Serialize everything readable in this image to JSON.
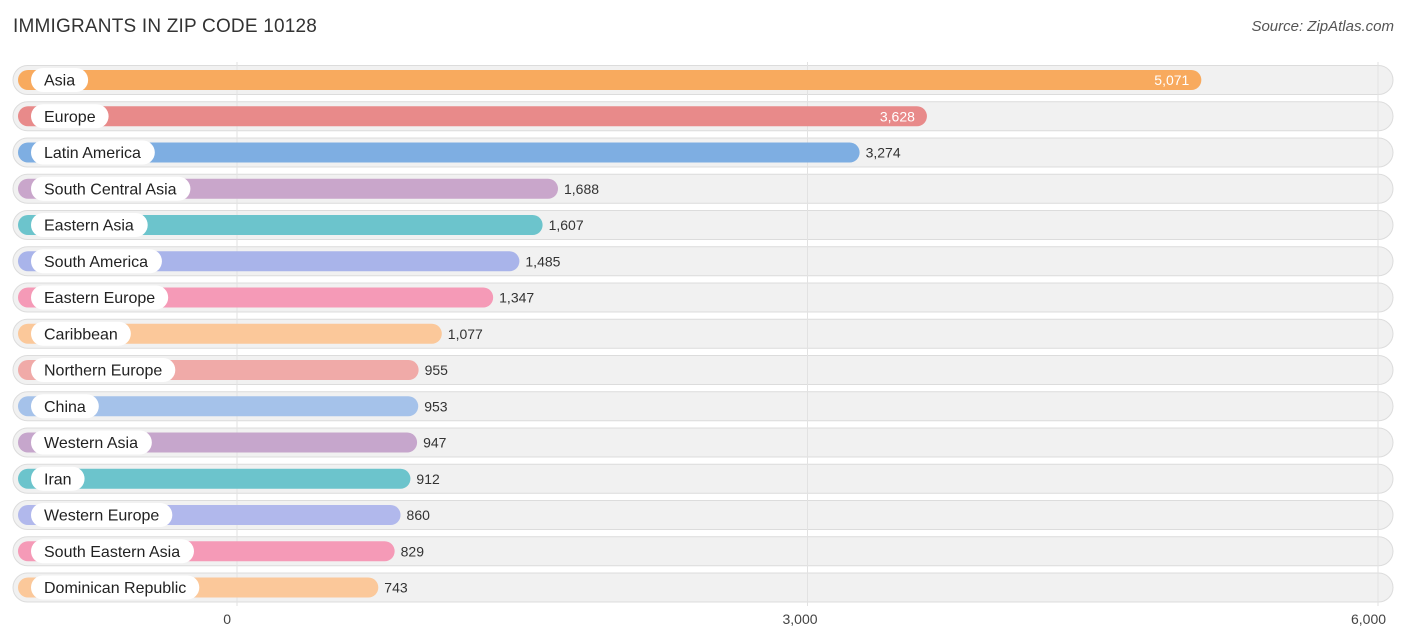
{
  "header": {
    "title": "IMMIGRANTS IN ZIP CODE 10128",
    "source": "Source: ZipAtlas.com"
  },
  "chart_data": {
    "type": "bar",
    "orientation": "horizontal",
    "title": "IMMIGRANTS IN ZIP CODE 10128",
    "xlim": [
      0,
      6000
    ],
    "x_ticks": [
      0,
      3000,
      6000
    ],
    "x_tick_labels": [
      "0",
      "3,000",
      "6,000"
    ],
    "grid": true,
    "categories": [
      "Asia",
      "Europe",
      "Latin America",
      "South Central Asia",
      "Eastern Asia",
      "South America",
      "Eastern Europe",
      "Caribbean",
      "Northern Europe",
      "China",
      "Western Asia",
      "Iran",
      "Western Europe",
      "South Eastern Asia",
      "Dominican Republic"
    ],
    "values": [
      5071,
      3628,
      3274,
      1688,
      1607,
      1485,
      1347,
      1077,
      955,
      953,
      947,
      912,
      860,
      829,
      743
    ],
    "value_labels": [
      "5,071",
      "3,628",
      "3,274",
      "1,688",
      "1,607",
      "1,485",
      "1,347",
      "1,077",
      "955",
      "953",
      "947",
      "912",
      "860",
      "829",
      "743"
    ],
    "colors": [
      "#f8aa5e",
      "#e88a8a",
      "#7eaee2",
      "#c9a6cb",
      "#6cc4cc",
      "#a9b4ea",
      "#f59ab7",
      "#fbc89a",
      "#f0aaa8",
      "#a5c2ea",
      "#c6a6cc",
      "#6cc4cc",
      "#b1b8ec",
      "#f59ab7",
      "#fbc89a"
    ]
  }
}
